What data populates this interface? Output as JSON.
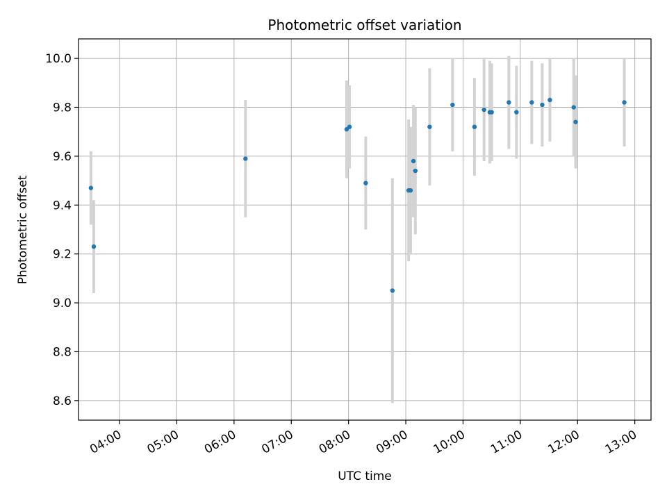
{
  "chart_data": {
    "type": "scatter",
    "title": "Photometric offset variation",
    "xlabel": "UTC time",
    "ylabel": "Photometric offset",
    "x_ticks": [
      "04:00",
      "05:00",
      "06:00",
      "07:00",
      "08:00",
      "09:00",
      "10:00",
      "11:00",
      "12:00",
      "13:00"
    ],
    "y_ticks": [
      "8.6",
      "8.8",
      "9.0",
      "9.2",
      "9.4",
      "9.6",
      "9.8",
      "10.0"
    ],
    "xlim": [
      "03:17",
      "13:17"
    ],
    "ylim": [
      8.52,
      10.08
    ],
    "grid": true,
    "marker_color": "#1f77b4",
    "errorbar_color": "#d3d3d3",
    "points": [
      {
        "x": "03:30",
        "y": 9.47,
        "yerr": 0.15
      },
      {
        "x": "03:33",
        "y": 9.23,
        "yerr": 0.19
      },
      {
        "x": "06:12",
        "y": 9.59,
        "yerr": 0.24
      },
      {
        "x": "07:58",
        "y": 9.71,
        "yerr": 0.2
      },
      {
        "x": "08:01",
        "y": 9.72,
        "yerr": 0.17
      },
      {
        "x": "08:18",
        "y": 9.49,
        "yerr": 0.19
      },
      {
        "x": "08:46",
        "y": 9.05,
        "yerr": 0.46
      },
      {
        "x": "09:03",
        "y": 9.46,
        "yerr": 0.29
      },
      {
        "x": "09:05",
        "y": 9.46,
        "yerr": 0.26
      },
      {
        "x": "09:08",
        "y": 9.58,
        "yerr": 0.23
      },
      {
        "x": "09:10",
        "y": 9.54,
        "yerr": 0.26
      },
      {
        "x": "09:25",
        "y": 9.72,
        "yerr": 0.24
      },
      {
        "x": "09:49",
        "y": 9.81,
        "yerr": 0.19
      },
      {
        "x": "10:12",
        "y": 9.72,
        "yerr": 0.2
      },
      {
        "x": "10:22",
        "y": 9.79,
        "yerr": 0.21
      },
      {
        "x": "10:28",
        "y": 9.78,
        "yerr": 0.21
      },
      {
        "x": "10:30",
        "y": 9.78,
        "yerr": 0.2
      },
      {
        "x": "10:48",
        "y": 9.82,
        "yerr": 0.19
      },
      {
        "x": "10:56",
        "y": 9.78,
        "yerr": 0.19
      },
      {
        "x": "11:12",
        "y": 9.82,
        "yerr": 0.17
      },
      {
        "x": "11:23",
        "y": 9.81,
        "yerr": 0.17
      },
      {
        "x": "11:31",
        "y": 9.83,
        "yerr": 0.17
      },
      {
        "x": "11:56",
        "y": 9.8,
        "yerr": 0.2
      },
      {
        "x": "11:58",
        "y": 9.74,
        "yerr": 0.19
      },
      {
        "x": "12:49",
        "y": 9.82,
        "yerr": 0.18
      }
    ]
  }
}
